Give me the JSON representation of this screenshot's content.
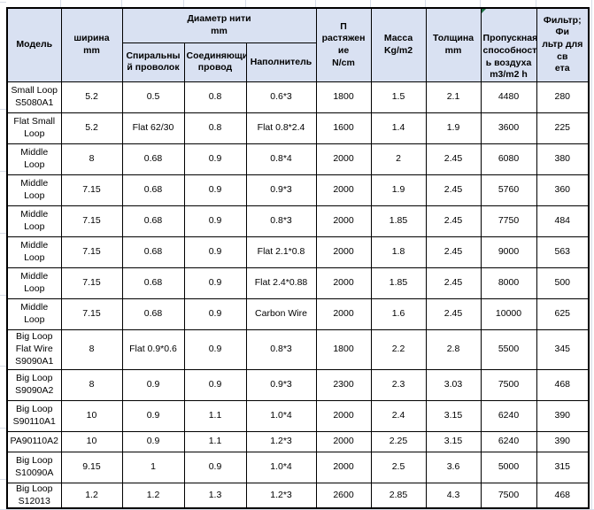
{
  "table": {
    "diameter_group_label": "Диаметр нити\nmm",
    "columns": [
      {
        "key": "model",
        "label": "Модель"
      },
      {
        "key": "width",
        "label": "ширина\nmm"
      },
      {
        "key": "spiral",
        "label": "Спиральны\nй проволок"
      },
      {
        "key": "connecting",
        "label": "Соединяющий\nпровод"
      },
      {
        "key": "filler",
        "label": "Наполнитель"
      },
      {
        "key": "tensile",
        "label": "П растяжен\nие\nN/cm"
      },
      {
        "key": "mass",
        "label": "Масса\nKg/m2"
      },
      {
        "key": "thickness",
        "label": "Толщина\nmm"
      },
      {
        "key": "airflow",
        "label": "Пропускная\nспособност\nь воздуха\nm3/m2 h"
      },
      {
        "key": "filter",
        "label": "Фильтр; Фи\nльтр для св\nета"
      }
    ],
    "rows": [
      {
        "cells": [
          "Small Loop\nS5080A1",
          "5.2",
          "0.5",
          "0.8",
          "0.6*3",
          "1800",
          "1.5",
          "2.1",
          "4480",
          "280"
        ]
      },
      {
        "cells": [
          "Flat Small\nLoop",
          "5.2",
          "Flat  62/30",
          "0.8",
          "Flat 0.8*2.4",
          "1600",
          "1.4",
          "1.9",
          "3600",
          "225"
        ]
      },
      {
        "cells": [
          "Middle\nLoop",
          "8",
          "0.68",
          "0.9",
          "0.8*4",
          "2000",
          "2",
          "2.45",
          "6080",
          "380"
        ]
      },
      {
        "cells": [
          "Middle\nLoop",
          "7.15",
          "0.68",
          "0.9",
          "0.9*3",
          "2000",
          "1.9",
          "2.45",
          "5760",
          "360"
        ]
      },
      {
        "cells": [
          "Middle\nLoop",
          "7.15",
          "0.68",
          "0.9",
          "0.8*3",
          "2000",
          "1.85",
          "2.45",
          "7750",
          "484"
        ]
      },
      {
        "cells": [
          "Middle\nLoop",
          "7.15",
          "0.68",
          "0.9",
          "Flat 2.1*0.8",
          "2000",
          "1.8",
          "2.45",
          "9000",
          "563"
        ]
      },
      {
        "cells": [
          "Middle\nLoop",
          "7.15",
          "0.68",
          "0.9",
          "Flat 2.4*0.88",
          "2000",
          "1.85",
          "2.45",
          "8000",
          "500"
        ]
      },
      {
        "cells": [
          "Middle\nLoop",
          "7.15",
          "0.68",
          "0.9",
          "Carbon Wire",
          "2000",
          "1.6",
          "2.45",
          "10000",
          "625"
        ]
      },
      {
        "cells": [
          "Big Loop\nFlat Wire\nS9090A1",
          "8",
          "Flat 0.9*0.6",
          "0.9",
          "0.8*3",
          "1800",
          "2.2",
          "2.8",
          "5500",
          "345"
        ]
      },
      {
        "cells": [
          "Big Loop\nS9090A2",
          "8",
          "0.9",
          "0.9",
          "0.9*3",
          "2300",
          "2.3",
          "3.03",
          "7500",
          "468"
        ]
      },
      {
        "cells": [
          "Big Loop\nS90110A1",
          "10",
          "0.9",
          "1.1",
          "1.0*4",
          "2000",
          "2.4",
          "3.15",
          "6240",
          "390"
        ]
      },
      {
        "cells": [
          "PA90110A2",
          "10",
          "0.9",
          "1.1",
          "1.2*3",
          "2000",
          "2.25",
          "3.15",
          "6240",
          "390"
        ]
      },
      {
        "cells": [
          "Big Loop\nS10090A",
          "9.15",
          "1",
          "0.9",
          "1.0*4",
          "2000",
          "2.5",
          "3.6",
          "5000",
          "315"
        ]
      },
      {
        "cells": [
          "Big Loop\nS12013",
          "1.2",
          "1.2",
          "1.3",
          "1.2*3",
          "2600",
          "2.85",
          "4.3",
          "7500",
          "468"
        ]
      }
    ]
  },
  "colors": {
    "header_fill": "#D9E1F2",
    "cell_border": "#000000",
    "gridline": "#D7DDE8",
    "comment_indicator_green": "#217346"
  }
}
